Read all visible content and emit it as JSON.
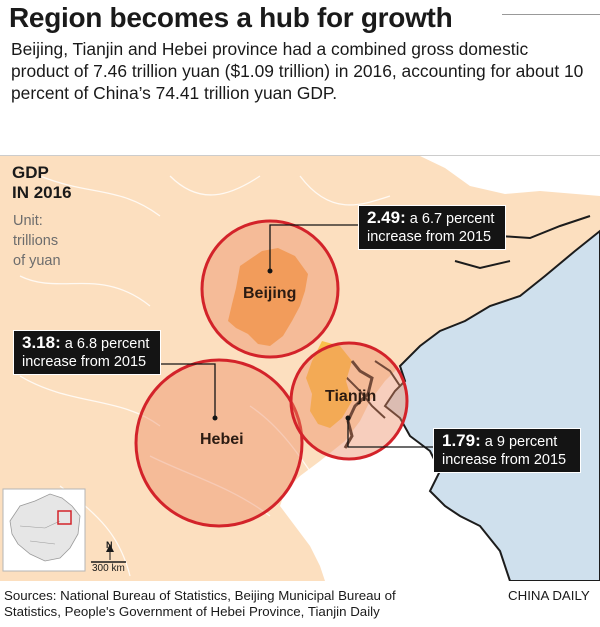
{
  "headline": "Region becomes a hub for growth",
  "intro": "Beijing, Tianjin and Hebei province had a combined gross domestic product of 7.46 trillion yuan ($1.09 trillion) in 2016, accounting for about 10 percent of China’s 74.41 trillion yuan GDP.",
  "map": {
    "gdp_title_line1": "GDP",
    "gdp_title_line2": "IN 2016",
    "unit_line1": "Unit:",
    "unit_line2": "trillions",
    "unit_line3": "of yuan",
    "regions": {
      "beijing": {
        "label": "Beijing",
        "value": "2.49:",
        "note_line1": "a 6.7 percent",
        "note_line2": "increase from 2015"
      },
      "hebei": {
        "label": "Hebei",
        "value": "3.18:",
        "note_line1": "a 6.8 percent",
        "note_line2": "increase from 2015"
      },
      "tianjin": {
        "label": "Tianjin",
        "value": "1.79:",
        "note_line1": "a 9 percent",
        "note_line2": "increase from 2015"
      }
    },
    "colors": {
      "land": "#fcdfbf",
      "sea": "#cfe0ed",
      "circle": "#ec8a62",
      "circle_stroke": "#d3232a",
      "beijing": "#f6aa57",
      "tianjin": "#f9c14c",
      "callout": "#141414"
    },
    "inset": {
      "north_label": "N",
      "scale_label": "300 km"
    }
  },
  "footer": {
    "sources_line1": "Sources: National Bureau of Statistics, Beijing Municipal Bureau of",
    "sources_line2": "Statistics, People's Government of Hebei Province, Tianjin Daily",
    "credit": "CHINA DAILY"
  }
}
